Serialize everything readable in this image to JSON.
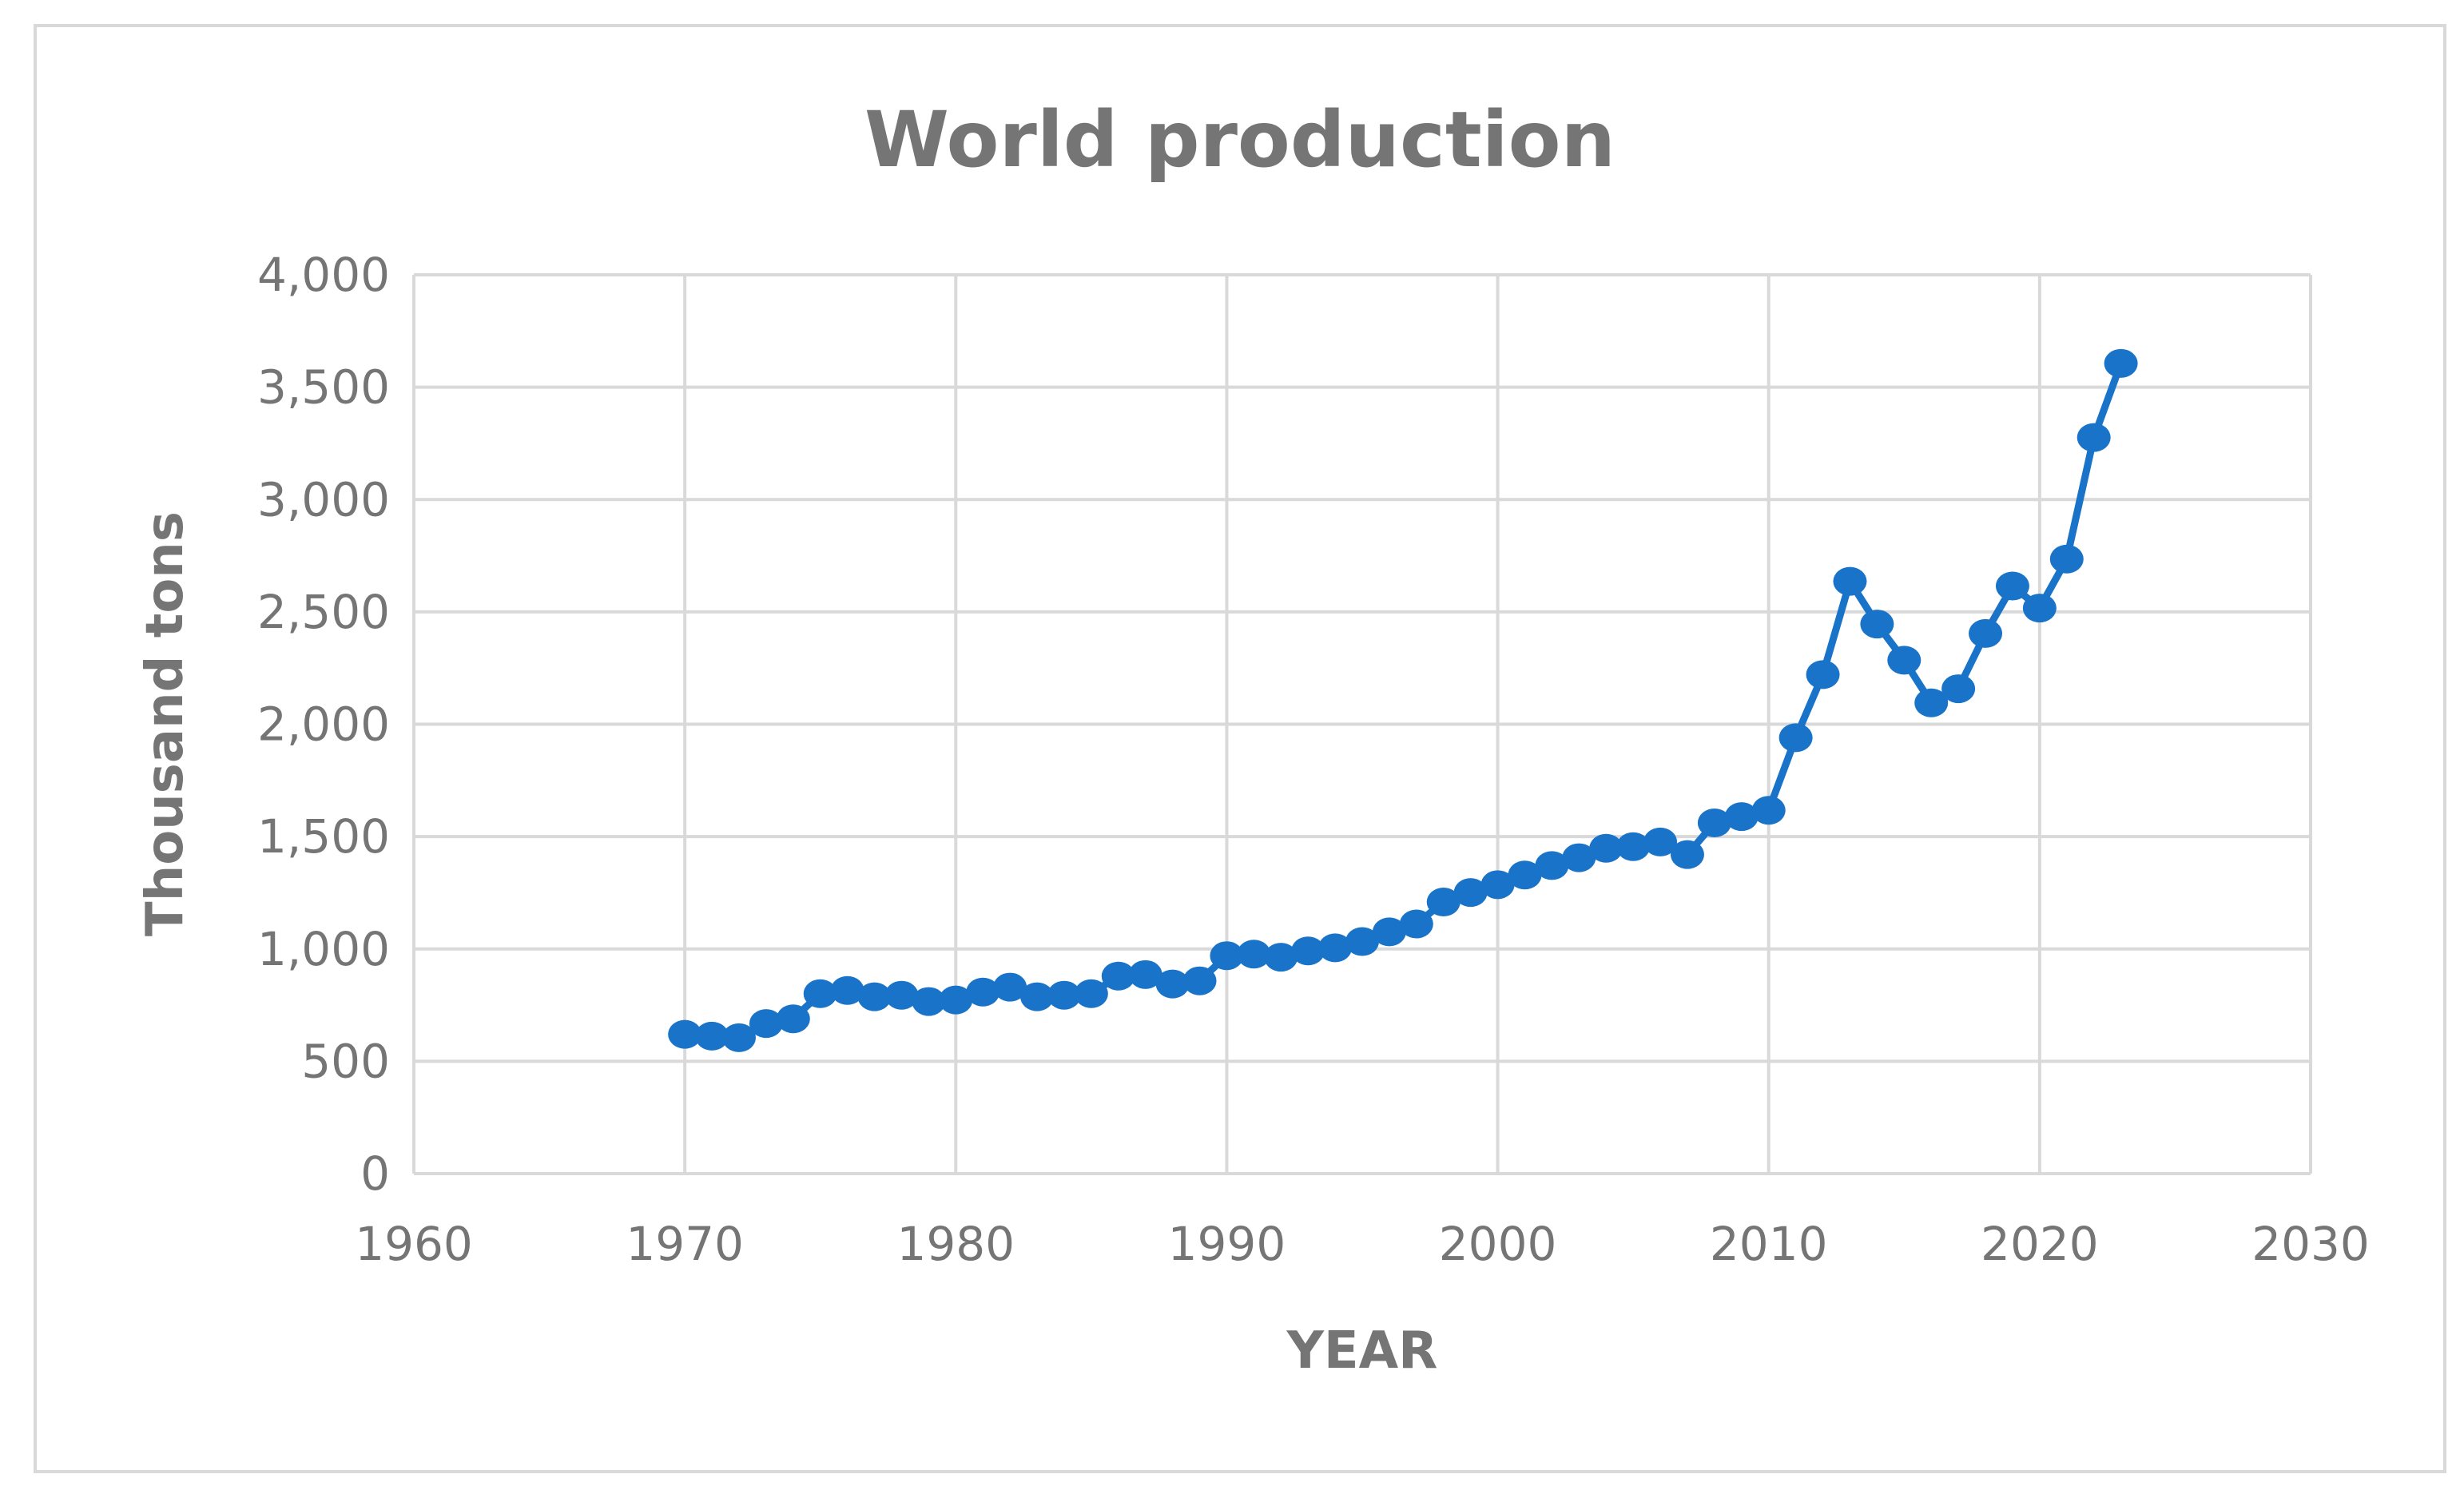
{
  "chart_data": {
    "type": "line",
    "title": "World production",
    "xlabel": "YEAR",
    "ylabel": "Thousand tons",
    "xlim": [
      1960,
      2030
    ],
    "ylim": [
      0,
      4000
    ],
    "x_ticks": [
      1960,
      1970,
      1980,
      1990,
      2000,
      2010,
      2020,
      2030
    ],
    "x_tick_labels": [
      "1960",
      "1970",
      "1980",
      "1990",
      "2000",
      "2010",
      "2020",
      "2030"
    ],
    "y_ticks": [
      0,
      500,
      1000,
      1500,
      2000,
      2500,
      3000,
      3500,
      4000
    ],
    "y_tick_labels": [
      "0",
      "500",
      "1,000",
      "1,500",
      "2,000",
      "2,500",
      "3,000",
      "3,500",
      "4,000"
    ],
    "grid": true,
    "markers": true,
    "color": "#1973C8",
    "series": [
      {
        "x": [
          1970,
          1971,
          1972,
          1973,
          1974,
          1975,
          1976,
          1977,
          1978,
          1979,
          1980,
          1981,
          1982,
          1983,
          1984,
          1985,
          1986,
          1987,
          1988,
          1989,
          1990,
          1991,
          1992,
          1993,
          1994,
          1995,
          1996,
          1997,
          1998,
          1999,
          2000,
          2001,
          2002,
          2003,
          2004,
          2005,
          2006,
          2007,
          2008,
          2009,
          2010,
          2011,
          2012,
          2013,
          2014,
          2015,
          2016,
          2017,
          2018,
          2019,
          2020,
          2021,
          2022,
          2023
        ],
        "y": [
          620,
          612,
          605,
          668,
          689,
          801,
          815,
          787,
          794,
          766,
          773,
          808,
          830,
          787,
          794,
          801,
          879,
          886,
          844,
          858,
          970,
          977,
          963,
          991,
          1005,
          1033,
          1076,
          1111,
          1209,
          1251,
          1286,
          1329,
          1371,
          1406,
          1448,
          1455,
          1476,
          1420,
          1561,
          1589,
          1617,
          1940,
          2221,
          2636,
          2446,
          2285,
          2095,
          2158,
          2404,
          2615,
          2517,
          2735,
          3276,
          3606
        ]
      }
    ]
  }
}
